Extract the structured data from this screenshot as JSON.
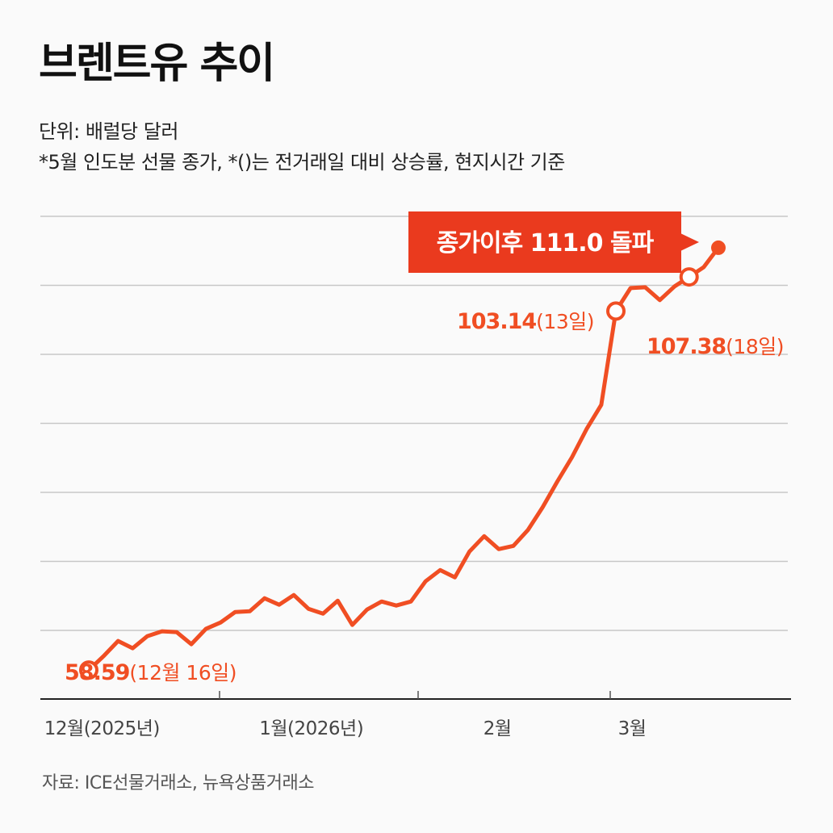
{
  "title": "브렌트유 추이",
  "unit_text": "단위: 배럴당 달러",
  "note_text": "*5월 인도분 선물 종가, *()는 전거래일 대비 상승률, 현지시간 기준",
  "source_text": "자료: ICE선물거래소, 뉴욕상품거래소",
  "colors": {
    "line": "#f04e23",
    "callout": "#ea3a1e",
    "grid": "#c7c7c7"
  },
  "chart_data": {
    "type": "line",
    "title": "브렌트유 추이",
    "ylabel": "배럴당 달러",
    "ylim": [
      55,
      115
    ],
    "grid": true,
    "x_tick_labels": [
      "12월(2025년)",
      "1월(2026년)",
      "2월",
      "3월"
    ],
    "x_tick_index": [
      0.9,
      15.2,
      27.9,
      37.1
    ],
    "series": [
      {
        "name": "브렌트유",
        "values": [
          58.59,
          60.3,
          62.2,
          61.3,
          62.8,
          63.4,
          63.3,
          61.8,
          63.7,
          64.5,
          65.8,
          65.9,
          67.5,
          66.7,
          67.9,
          66.2,
          65.6,
          67.2,
          64.2,
          66.1,
          67.1,
          66.6,
          67.1,
          69.6,
          71.0,
          70.1,
          73.3,
          75.2,
          73.6,
          74.0,
          76.0,
          78.8,
          82.0,
          85.0,
          88.5,
          91.5,
          103.14,
          106.0,
          106.1,
          104.5,
          106.2,
          107.38,
          108.6,
          111.0
        ]
      }
    ],
    "annotations": [
      {
        "index": 0,
        "value": "58.59",
        "date": "(12월 16일)",
        "marker": "open"
      },
      {
        "index": 36,
        "value": "103.14",
        "date": "(13일)",
        "marker": "open"
      },
      {
        "index": 41,
        "value": "107.38",
        "date": "(18일)",
        "marker": "open"
      },
      {
        "index": 43,
        "callout": "종가이후 111.0 돌파",
        "marker": "solid"
      }
    ]
  }
}
